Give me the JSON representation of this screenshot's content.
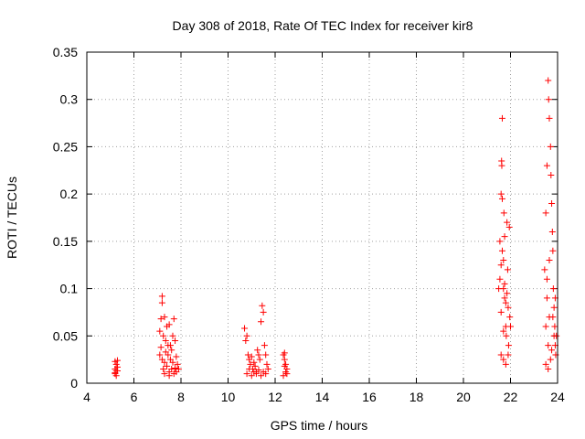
{
  "chart_data": {
    "type": "scatter",
    "title": "Day 308 of 2018, Rate Of TEC Index for receiver kir8",
    "xlabel": "GPS time / hours",
    "ylabel": "ROTI / TECUs",
    "xlim": [
      4,
      24
    ],
    "ylim": [
      0,
      0.35
    ],
    "xticks": [
      "4",
      "6",
      "8",
      "10",
      "12",
      "14",
      "16",
      "18",
      "20",
      "22",
      "24"
    ],
    "yticks": [
      "0",
      "0.05",
      "0.1",
      "0.15",
      "0.2",
      "0.25",
      "0.3",
      "0.35"
    ],
    "grid": true,
    "marker": "+",
    "color": "#ff0000",
    "series": [
      {
        "name": "ROTI",
        "points": [
          [
            5.2,
            0.023
          ],
          [
            5.2,
            0.015
          ],
          [
            5.2,
            0.01
          ],
          [
            5.25,
            0.02
          ],
          [
            5.25,
            0.008
          ],
          [
            5.3,
            0.013
          ],
          [
            5.3,
            0.024
          ],
          [
            5.3,
            0.017
          ],
          [
            5.2,
            0.011
          ],
          [
            5.25,
            0.013
          ],
          [
            7.1,
            0.055
          ],
          [
            7.15,
            0.068
          ],
          [
            7.2,
            0.092
          ],
          [
            7.2,
            0.085
          ],
          [
            7.25,
            0.05
          ],
          [
            7.3,
            0.07
          ],
          [
            7.35,
            0.045
          ],
          [
            7.4,
            0.06
          ],
          [
            7.45,
            0.03
          ],
          [
            7.5,
            0.062
          ],
          [
            7.55,
            0.04
          ],
          [
            7.6,
            0.035
          ],
          [
            7.65,
            0.05
          ],
          [
            7.7,
            0.068
          ],
          [
            7.75,
            0.045
          ],
          [
            7.8,
            0.028
          ],
          [
            7.85,
            0.02
          ],
          [
            7.9,
            0.015
          ],
          [
            7.1,
            0.03
          ],
          [
            7.2,
            0.025
          ],
          [
            7.3,
            0.022
          ],
          [
            7.4,
            0.018
          ],
          [
            7.5,
            0.012
          ],
          [
            7.6,
            0.015
          ],
          [
            7.7,
            0.01
          ],
          [
            7.8,
            0.012
          ],
          [
            7.15,
            0.038
          ],
          [
            7.35,
            0.033
          ],
          [
            7.55,
            0.025
          ],
          [
            7.25,
            0.015
          ],
          [
            7.45,
            0.04
          ],
          [
            7.65,
            0.022
          ],
          [
            7.75,
            0.016
          ],
          [
            7.3,
            0.01
          ],
          [
            7.5,
            0.008
          ],
          [
            10.7,
            0.058
          ],
          [
            10.75,
            0.045
          ],
          [
            10.8,
            0.05
          ],
          [
            10.85,
            0.03
          ],
          [
            10.9,
            0.025
          ],
          [
            10.95,
            0.02
          ],
          [
            11.0,
            0.028
          ],
          [
            11.05,
            0.015
          ],
          [
            11.1,
            0.022
          ],
          [
            11.15,
            0.018
          ],
          [
            11.2,
            0.012
          ],
          [
            11.25,
            0.035
          ],
          [
            11.3,
            0.03
          ],
          [
            11.35,
            0.025
          ],
          [
            11.4,
            0.065
          ],
          [
            11.45,
            0.082
          ],
          [
            11.5,
            0.075
          ],
          [
            11.55,
            0.04
          ],
          [
            11.6,
            0.03
          ],
          [
            11.65,
            0.02
          ],
          [
            11.7,
            0.015
          ],
          [
            10.8,
            0.01
          ],
          [
            11.0,
            0.008
          ],
          [
            11.2,
            0.01
          ],
          [
            11.4,
            0.008
          ],
          [
            11.6,
            0.01
          ],
          [
            10.9,
            0.015
          ],
          [
            11.1,
            0.012
          ],
          [
            11.3,
            0.014
          ],
          [
            11.5,
            0.012
          ],
          [
            12.35,
            0.03
          ],
          [
            12.4,
            0.025
          ],
          [
            12.4,
            0.018
          ],
          [
            12.45,
            0.012
          ],
          [
            12.5,
            0.01
          ],
          [
            12.4,
            0.032
          ],
          [
            12.45,
            0.02
          ],
          [
            12.5,
            0.015
          ],
          [
            12.35,
            0.008
          ],
          [
            21.5,
            0.1
          ],
          [
            21.55,
            0.15
          ],
          [
            21.6,
            0.2
          ],
          [
            21.62,
            0.235
          ],
          [
            21.63,
            0.23
          ],
          [
            21.65,
            0.28
          ],
          [
            21.7,
            0.13
          ],
          [
            21.72,
            0.18
          ],
          [
            21.75,
            0.09
          ],
          [
            21.8,
            0.06
          ],
          [
            21.82,
            0.05
          ],
          [
            21.85,
            0.17
          ],
          [
            21.88,
            0.12
          ],
          [
            21.9,
            0.08
          ],
          [
            21.92,
            0.04
          ],
          [
            21.95,
            0.165
          ],
          [
            21.97,
            0.07
          ],
          [
            22.0,
            0.06
          ],
          [
            21.6,
            0.03
          ],
          [
            21.7,
            0.025
          ],
          [
            21.8,
            0.02
          ],
          [
            21.9,
            0.03
          ],
          [
            21.55,
            0.11
          ],
          [
            21.65,
            0.14
          ],
          [
            21.75,
            0.105
          ],
          [
            21.85,
            0.095
          ],
          [
            21.6,
            0.075
          ],
          [
            21.7,
            0.055
          ],
          [
            21.8,
            0.085
          ],
          [
            21.65,
            0.195
          ],
          [
            21.75,
            0.155
          ],
          [
            21.6,
            0.125
          ],
          [
            21.7,
            0.1
          ],
          [
            23.45,
            0.12
          ],
          [
            23.5,
            0.18
          ],
          [
            23.55,
            0.23
          ],
          [
            23.6,
            0.32
          ],
          [
            23.62,
            0.3
          ],
          [
            23.65,
            0.28
          ],
          [
            23.7,
            0.25
          ],
          [
            23.72,
            0.22
          ],
          [
            23.75,
            0.19
          ],
          [
            23.78,
            0.16
          ],
          [
            23.8,
            0.14
          ],
          [
            23.82,
            0.1
          ],
          [
            23.85,
            0.08
          ],
          [
            23.88,
            0.06
          ],
          [
            23.9,
            0.04
          ],
          [
            23.92,
            0.03
          ],
          [
            23.95,
            0.05
          ],
          [
            23.5,
            0.06
          ],
          [
            23.55,
            0.09
          ],
          [
            23.6,
            0.04
          ],
          [
            23.65,
            0.07
          ],
          [
            23.7,
            0.025
          ],
          [
            23.75,
            0.035
          ],
          [
            23.5,
            0.02
          ],
          [
            23.6,
            0.015
          ],
          [
            23.55,
            0.11
          ],
          [
            23.65,
            0.13
          ],
          [
            23.8,
            0.07
          ],
          [
            23.85,
            0.05
          ],
          [
            23.9,
            0.09
          ]
        ]
      }
    ]
  }
}
